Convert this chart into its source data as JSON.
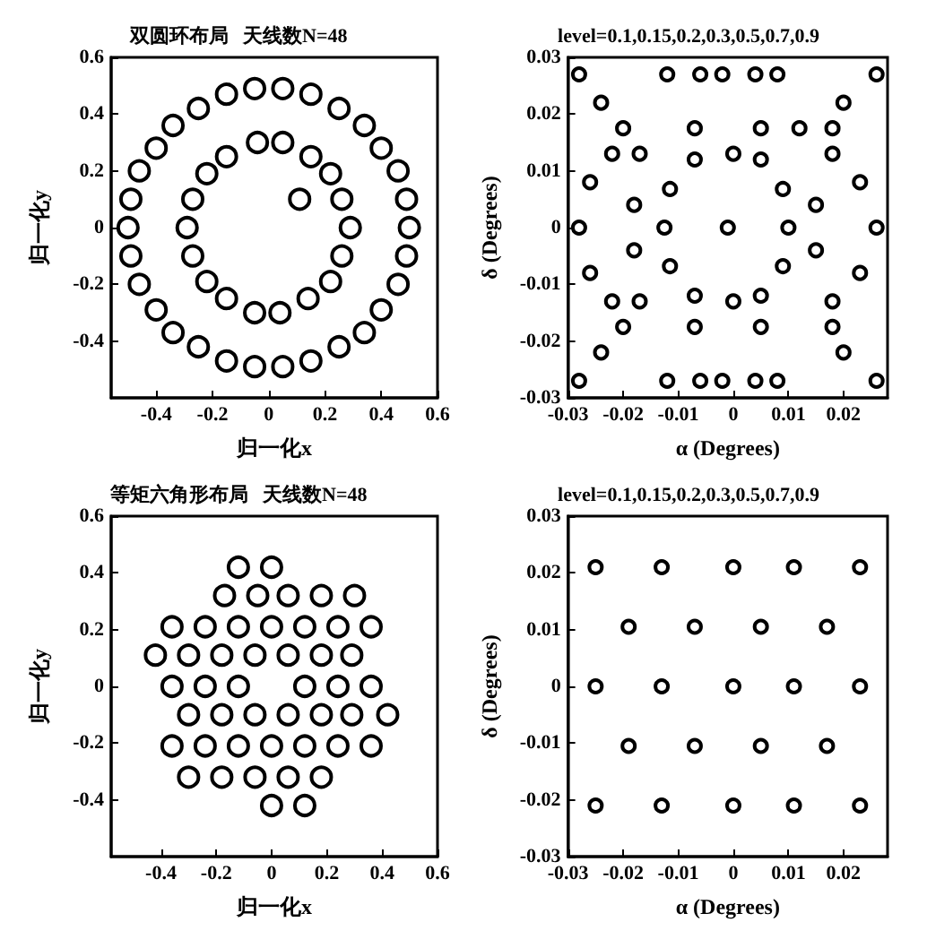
{
  "chart_data": [
    {
      "type": "scatter",
      "title": "双圆环布局   天线数N=48",
      "xlabel": "归一化x",
      "ylabel": "归一化y",
      "xlim": [
        -0.56,
        0.6
      ],
      "ylim": [
        -0.6,
        0.6
      ],
      "xticks": [
        -0.4,
        -0.2,
        0,
        0.2,
        0.4,
        0.6
      ],
      "yticks": [
        -0.4,
        -0.2,
        0,
        0.2,
        0.4,
        0.6
      ],
      "marker": "circle",
      "series": [
        {
          "color": "#000000",
          "x": [
            0.05,
            0.15,
            0.25,
            0.34,
            0.4,
            0.46,
            0.49,
            0.5,
            0.49,
            0.46,
            0.4,
            0.34,
            0.25,
            0.15,
            0.05,
            -0.05,
            -0.15,
            -0.25,
            -0.34,
            -0.4,
            -0.46,
            -0.49,
            -0.5,
            -0.49,
            -0.46,
            -0.4,
            -0.34,
            -0.25,
            -0.15,
            -0.05,
            0.05,
            0.15,
            0.22,
            0.26,
            0.29,
            0.26,
            0.22,
            0.14,
            0.04,
            -0.04,
            -0.15,
            -0.22,
            -0.27,
            -0.29,
            -0.27,
            -0.22,
            -0.15,
            -0.05,
            0.11
          ],
          "values": [
            0.49,
            0.47,
            0.42,
            0.36,
            0.28,
            0.2,
            0.1,
            0,
            -0.1,
            -0.2,
            -0.29,
            -0.37,
            -0.42,
            -0.47,
            -0.49,
            0.49,
            0.47,
            0.42,
            0.36,
            0.28,
            0.2,
            0.1,
            0,
            -0.1,
            -0.2,
            -0.29,
            -0.37,
            -0.42,
            -0.47,
            -0.49,
            0.3,
            0.25,
            0.19,
            0.1,
            0,
            -0.1,
            -0.19,
            -0.25,
            -0.3,
            0.3,
            0.25,
            0.19,
            0.1,
            0,
            -0.1,
            -0.19,
            -0.25,
            -0.3,
            0.1
          ]
        }
      ]
    },
    {
      "type": "scatter",
      "title": "level=0.1,0.15,0.2,0.3,0.5,0.7,0.9",
      "xlabel": "α (Degrees)",
      "ylabel": "δ (Degrees)",
      "xlim": [
        -0.03,
        0.028
      ],
      "ylim": [
        -0.03,
        0.03
      ],
      "xticks": [
        -0.03,
        -0.02,
        -0.01,
        0,
        0.01,
        0.02
      ],
      "yticks": [
        -0.03,
        -0.02,
        -0.01,
        0,
        0.01,
        0.02,
        0.03
      ],
      "marker": "circle",
      "series": [
        {
          "color": "#000000",
          "x": [
            -0.028,
            -0.012,
            -0.006,
            -0.002,
            0.004,
            0.008,
            0.026,
            -0.024,
            0.02,
            -0.02,
            -0.007,
            0.005,
            0.012,
            0.018,
            -0.022,
            -0.017,
            0,
            0.018,
            -0.026,
            0.023,
            -0.018,
            0.015,
            -0.028,
            -0.0125,
            -0.001,
            0.01,
            0.026,
            -0.018,
            0.015,
            -0.026,
            0.023,
            -0.022,
            -0.017,
            0,
            0.018,
            -0.02,
            -0.007,
            0.005,
            0.018,
            -0.024,
            0.02,
            -0.028,
            -0.012,
            -0.006,
            -0.002,
            0.004,
            0.008,
            0.026,
            -0.0115,
            0.009,
            -0.0115,
            0.009,
            -0.007,
            0.005,
            -0.007,
            0.005
          ],
          "values": [
            0.027,
            0.027,
            0.027,
            0.027,
            0.027,
            0.027,
            0.027,
            0.022,
            0.022,
            0.0175,
            0.0175,
            0.0175,
            0.0175,
            0.0175,
            0.013,
            0.013,
            0.013,
            0.013,
            0.008,
            0.008,
            0.004,
            0.004,
            0,
            0,
            0,
            0,
            0,
            -0.004,
            -0.004,
            -0.008,
            -0.008,
            -0.013,
            -0.013,
            -0.013,
            -0.013,
            -0.0175,
            -0.0175,
            -0.0175,
            -0.0175,
            -0.022,
            -0.022,
            -0.027,
            -0.027,
            -0.027,
            -0.027,
            -0.027,
            -0.027,
            -0.027,
            0.0068,
            0.0068,
            -0.0068,
            -0.0068,
            0.012,
            0.012,
            -0.012,
            -0.012
          ]
        }
      ]
    },
    {
      "type": "scatter",
      "title": "等矩六角形布局   天线数N=48",
      "xlabel": "归一化x",
      "ylabel": "归一化y",
      "xlim": [
        -0.58,
        0.6
      ],
      "ylim": [
        -0.6,
        0.6
      ],
      "xticks": [
        -0.4,
        -0.2,
        0,
        0.2,
        0.4,
        0.6
      ],
      "yticks": [
        -0.4,
        -0.2,
        0,
        0.2,
        0.4,
        0.6
      ],
      "marker": "circle",
      "series": [
        {
          "color": "#000000",
          "x": [
            -0.12,
            0,
            -0.17,
            -0.05,
            0.06,
            0.18,
            0.3,
            -0.36,
            -0.24,
            -0.12,
            0,
            0.12,
            0.24,
            0.36,
            -0.42,
            -0.3,
            -0.18,
            -0.06,
            0.06,
            0.18,
            0.29,
            -0.36,
            -0.24,
            -0.12,
            0.12,
            0.24,
            0.36,
            -0.3,
            -0.18,
            -0.06,
            0.06,
            0.18,
            0.29,
            0.42,
            -0.36,
            -0.24,
            -0.12,
            0,
            0.12,
            0.24,
            0.36,
            -0.3,
            -0.18,
            -0.06,
            0.06,
            0.18,
            0,
            0.12
          ],
          "values": [
            0.42,
            0.42,
            0.32,
            0.32,
            0.32,
            0.32,
            0.32,
            0.21,
            0.21,
            0.21,
            0.21,
            0.21,
            0.21,
            0.21,
            0.11,
            0.11,
            0.11,
            0.11,
            0.11,
            0.11,
            0.11,
            0,
            0,
            0,
            0,
            0,
            0,
            -0.1,
            -0.1,
            -0.1,
            -0.1,
            -0.1,
            -0.1,
            -0.1,
            -0.21,
            -0.21,
            -0.21,
            -0.21,
            -0.21,
            -0.21,
            -0.21,
            -0.32,
            -0.32,
            -0.32,
            -0.32,
            -0.32,
            -0.42,
            -0.42
          ]
        }
      ]
    },
    {
      "type": "scatter",
      "title": "level=0.1,0.15,0.2,0.3,0.5,0.7,0.9",
      "xlabel": "α (Degrees)",
      "ylabel": "δ (Degrees)",
      "xlim": [
        -0.03,
        0.028
      ],
      "ylim": [
        -0.03,
        0.03
      ],
      "xticks": [
        -0.03,
        -0.02,
        -0.01,
        0,
        0.01,
        0.02
      ],
      "yticks": [
        -0.03,
        -0.02,
        -0.01,
        0,
        0.01,
        0.02,
        0.03
      ],
      "marker": "circle",
      "series": [
        {
          "color": "#000000",
          "x": [
            -0.025,
            -0.013,
            0,
            0.011,
            0.023,
            -0.019,
            -0.007,
            0.005,
            0.017,
            -0.025,
            -0.013,
            0,
            0.011,
            0.023,
            -0.019,
            -0.007,
            0.005,
            0.017,
            -0.025,
            -0.013,
            0,
            0.011,
            0.023
          ],
          "values": [
            0.021,
            0.021,
            0.021,
            0.021,
            0.021,
            0.0105,
            0.0105,
            0.0105,
            0.0105,
            0,
            0,
            0,
            0,
            0,
            -0.0105,
            -0.0105,
            -0.0105,
            -0.0105,
            -0.021,
            -0.021,
            -0.021,
            -0.021,
            -0.021
          ]
        }
      ]
    }
  ]
}
